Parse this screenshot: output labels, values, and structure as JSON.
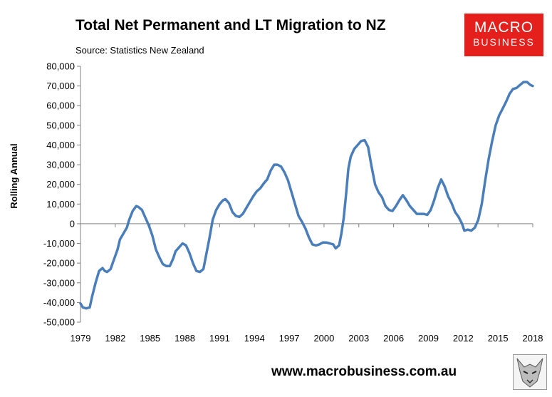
{
  "header": {
    "title": "Total Net Permanent and LT Migration to NZ",
    "source": "Source: Statistics New Zealand"
  },
  "logo": {
    "line1": "MACRO",
    "line2": "BUSINESS",
    "color": "#e5201c"
  },
  "footer": {
    "url": "www.macrobusiness.com.au",
    "icon": "wolf-icon"
  },
  "chart_data": {
    "type": "line",
    "title": "Total Net Permanent and LT Migration to NZ",
    "xlabel": "",
    "ylabel": "Rolling Annual",
    "xlim": [
      1979,
      2018
    ],
    "ylim": [
      -50000,
      80000
    ],
    "grid": false,
    "x_ticks": [
      1979,
      1982,
      1985,
      1988,
      1991,
      1994,
      1997,
      2000,
      2003,
      2006,
      2009,
      2012,
      2015,
      2018
    ],
    "x_tick_labels": [
      "1979",
      "1982",
      "1985",
      "1988",
      "1991",
      "1994",
      "1997",
      "2000",
      "2003",
      "2006",
      "2009",
      "2012",
      "2015",
      "2018"
    ],
    "y_ticks": [
      -50000,
      -40000,
      -30000,
      -20000,
      -10000,
      0,
      10000,
      20000,
      30000,
      40000,
      50000,
      60000,
      70000,
      80000
    ],
    "y_tick_labels": [
      "-50,000",
      "-40,000",
      "-30,000",
      "-20,000",
      "-10,000",
      "0",
      "10,000",
      "20,000",
      "30,000",
      "40,000",
      "50,000",
      "60,000",
      "70,000",
      "80,000"
    ],
    "series": [
      {
        "color": "#4a7ebb",
        "x": [
          1979.0,
          1979.2,
          1979.5,
          1979.8,
          1980.0,
          1980.3,
          1980.6,
          1980.9,
          1981.1,
          1981.3,
          1981.6,
          1981.9,
          1982.2,
          1982.4,
          1982.7,
          1983.0,
          1983.2,
          1983.5,
          1983.8,
          1984.0,
          1984.3,
          1984.6,
          1984.9,
          1985.2,
          1985.5,
          1985.8,
          1986.1,
          1986.4,
          1986.7,
          1987.0,
          1987.2,
          1987.5,
          1987.8,
          1988.1,
          1988.4,
          1988.7,
          1989.0,
          1989.3,
          1989.6,
          1989.8,
          1990.1,
          1990.4,
          1990.7,
          1991.0,
          1991.3,
          1991.5,
          1991.8,
          1992.1,
          1992.4,
          1992.7,
          1993.0,
          1993.3,
          1993.6,
          1993.9,
          1994.2,
          1994.5,
          1994.8,
          1995.1,
          1995.4,
          1995.7,
          1996.0,
          1996.3,
          1996.6,
          1996.9,
          1997.2,
          1997.5,
          1997.8,
          1998.1,
          1998.4,
          1998.7,
          1999.0,
          1999.3,
          1999.6,
          1999.9,
          2000.2,
          2000.5,
          2000.8,
          2001.0,
          2001.3,
          2001.5,
          2001.7,
          2001.9,
          2002.1,
          2002.3,
          2002.6,
          2002.9,
          2003.2,
          2003.5,
          2003.8,
          2004.1,
          2004.4,
          2004.7,
          2005.0,
          2005.3,
          2005.6,
          2005.9,
          2006.2,
          2006.5,
          2006.8,
          2007.1,
          2007.4,
          2007.7,
          2008.0,
          2008.3,
          2008.6,
          2008.9,
          2009.2,
          2009.5,
          2009.8,
          2010.1,
          2010.4,
          2010.7,
          2011.0,
          2011.3,
          2011.6,
          2011.9,
          2012.1,
          2012.4,
          2012.7,
          2013.0,
          2013.3,
          2013.6,
          2013.9,
          2014.2,
          2014.5,
          2014.8,
          2015.1,
          2015.4,
          2015.7,
          2016.0,
          2016.3,
          2016.6,
          2016.9,
          2017.2,
          2017.5,
          2017.8,
          2018.0
        ],
        "values": [
          -40500,
          -42500,
          -43000,
          -42500,
          -37000,
          -30000,
          -24000,
          -22500,
          -24000,
          -24500,
          -23000,
          -18000,
          -13000,
          -8000,
          -5000,
          -2000,
          2000,
          6500,
          9000,
          8500,
          7000,
          3000,
          -1000,
          -6000,
          -13000,
          -17000,
          -20500,
          -21500,
          -21500,
          -17500,
          -14000,
          -12000,
          -10000,
          -11000,
          -15000,
          -20000,
          -24000,
          -24500,
          -23000,
          -17000,
          -8000,
          2000,
          7000,
          10000,
          12000,
          12500,
          10500,
          6000,
          4000,
          3500,
          5000,
          8000,
          11000,
          14000,
          16500,
          18000,
          20500,
          22500,
          27000,
          30000,
          30000,
          29000,
          26000,
          22000,
          16000,
          10000,
          4000,
          1000,
          -2500,
          -7000,
          -10500,
          -11000,
          -10500,
          -9500,
          -9500,
          -10000,
          -10500,
          -12500,
          -11000,
          -5000,
          3000,
          15000,
          28000,
          34000,
          38000,
          40000,
          42000,
          42500,
          39000,
          29000,
          20000,
          16000,
          13500,
          9000,
          7000,
          6500,
          9000,
          12000,
          14500,
          12000,
          9000,
          7000,
          5000,
          5000,
          5000,
          4500,
          7000,
          12000,
          18000,
          22500,
          19000,
          14000,
          10500,
          6000,
          3500,
          0,
          -3500,
          -3000,
          -3500,
          -2000,
          2000,
          10000,
          22000,
          33000,
          42000,
          50000,
          55000,
          58500,
          62000,
          66000,
          68500,
          69000,
          70500,
          72000,
          72000,
          70500,
          70000
        ]
      }
    ]
  }
}
